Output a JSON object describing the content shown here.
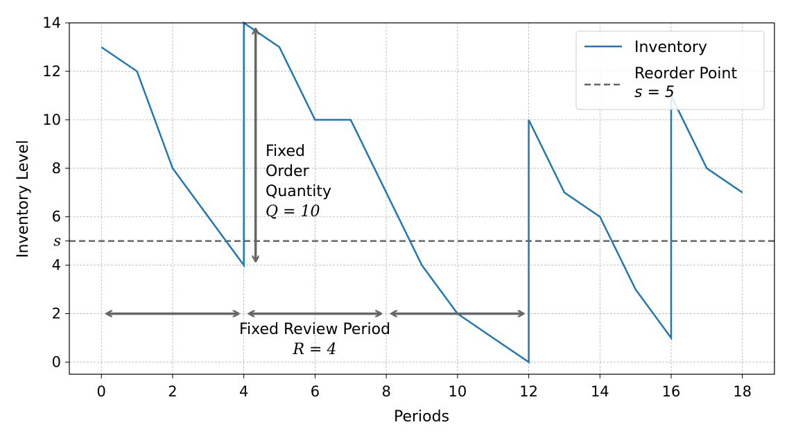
{
  "chart_data": {
    "type": "line",
    "xlabel": "Periods",
    "ylabel": "Inventory Level",
    "xlim": [
      -0.9,
      18.9
    ],
    "ylim": [
      -0.5,
      14
    ],
    "xticks": [
      0,
      2,
      4,
      6,
      8,
      10,
      12,
      14,
      16,
      18
    ],
    "yticks": [
      {
        "value": 0,
        "label": "0"
      },
      {
        "value": 2,
        "label": "2"
      },
      {
        "value": 4,
        "label": "4"
      },
      {
        "value": 5,
        "label": "s"
      },
      {
        "value": 6,
        "label": "6"
      },
      {
        "value": 8,
        "label": "8"
      },
      {
        "value": 10,
        "label": "10"
      },
      {
        "value": 12,
        "label": "12"
      },
      {
        "value": 14,
        "label": "14"
      }
    ],
    "grid": true,
    "legend_position": "top-right",
    "series": [
      {
        "name": "Inventory",
        "color": "#1f77b4",
        "style": "solid",
        "points": [
          [
            0,
            13
          ],
          [
            1,
            12
          ],
          [
            2,
            8
          ],
          [
            3,
            6
          ],
          [
            4,
            4
          ],
          [
            4,
            14
          ],
          [
            5,
            13
          ],
          [
            6,
            10
          ],
          [
            7,
            10
          ],
          [
            8,
            7
          ],
          [
            9,
            4
          ],
          [
            10,
            2
          ],
          [
            11,
            1
          ],
          [
            12,
            0
          ],
          [
            12,
            10
          ],
          [
            13,
            7
          ],
          [
            14,
            6
          ],
          [
            15,
            3
          ],
          [
            16,
            1
          ],
          [
            16,
            11
          ],
          [
            17,
            8
          ],
          [
            18,
            7
          ]
        ]
      },
      {
        "name": "Reorder Point",
        "name_line2": "s = 5",
        "color": "#666666",
        "style": "dashed",
        "value": 5
      }
    ],
    "annotations": {
      "order_quantity": {
        "lines": [
          "Fixed",
          "Order",
          "Quantity",
          "Q = 10"
        ],
        "x": 4.3,
        "y_from": 4,
        "y_to": 14
      },
      "review_period": {
        "lines": [
          "Fixed Review Period",
          "R = 4"
        ],
        "y": 2,
        "segments": [
          [
            0,
            4
          ],
          [
            4,
            8
          ],
          [
            8,
            12
          ]
        ]
      }
    },
    "arrow_color": "#666666"
  }
}
